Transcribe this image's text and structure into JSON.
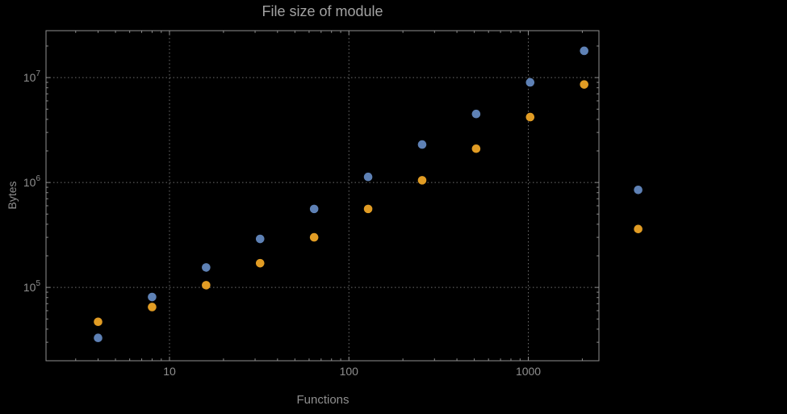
{
  "chart_data": {
    "type": "scatter",
    "title": "File size of module",
    "xlabel": "Functions",
    "ylabel": "Bytes",
    "x_scale": "log",
    "y_scale": "log",
    "x_range": [
      2.05,
      2475
    ],
    "y_range": [
      20000,
      28000000
    ],
    "grid": "dotted",
    "legend": "none",
    "x_ticks": [
      {
        "value": 10,
        "label": "10"
      },
      {
        "value": 100,
        "label": "100"
      },
      {
        "value": 1000,
        "label": "1000"
      }
    ],
    "y_ticks": [
      {
        "value": 100000,
        "base": "10",
        "exp": "5"
      },
      {
        "value": 1000000,
        "base": "10",
        "exp": "6"
      },
      {
        "value": 10000000,
        "base": "10",
        "exp": "7"
      }
    ],
    "series": [
      {
        "name": "series-1",
        "color": "#5e81b5",
        "x": [
          4,
          8,
          16,
          32,
          64,
          128,
          256,
          512,
          1024,
          2048,
          4096
        ],
        "y": [
          33000,
          81000,
          155000,
          290000,
          560000,
          1130000,
          2300000,
          4500000,
          9000000,
          18000000,
          850000
        ]
      },
      {
        "name": "series-2",
        "color": "#e19c24",
        "x": [
          4,
          8,
          16,
          32,
          64,
          128,
          256,
          512,
          1024,
          2048,
          4096
        ],
        "y": [
          47000,
          65000,
          105000,
          170000,
          300000,
          560000,
          1050000,
          2100000,
          4200000,
          8600000,
          360000
        ]
      }
    ]
  }
}
